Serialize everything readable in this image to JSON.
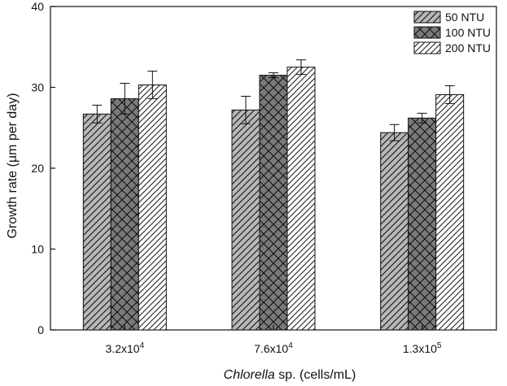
{
  "chart_data": {
    "type": "bar",
    "categories": [
      {
        "base": "3.2x10",
        "exp": "4"
      },
      {
        "base": "7.6x10",
        "exp": "4"
      },
      {
        "base": "1.3x10",
        "exp": "5"
      }
    ],
    "series": [
      {
        "name": "50 NTU",
        "values": [
          26.7,
          27.2,
          24.4
        ],
        "errors": [
          1.1,
          1.7,
          1.0
        ],
        "fill": "#b8b8b8",
        "pattern": "diagonal-back"
      },
      {
        "name": "100 NTU",
        "values": [
          28.6,
          31.5,
          26.2
        ],
        "errors": [
          1.9,
          0.3,
          0.6
        ],
        "fill": "#7a7a7a",
        "pattern": "crosshatch"
      },
      {
        "name": "200 NTU",
        "values": [
          30.3,
          32.5,
          29.1
        ],
        "errors": [
          1.7,
          0.9,
          1.1
        ],
        "fill": "#ffffff",
        "pattern": "diagonal-fwd"
      }
    ],
    "xlabel": {
      "italic": "Chlorella",
      "rest": " sp. (cells/mL)"
    },
    "ylabel": "Growth rate (µm per day)",
    "ylim": [
      0,
      40
    ],
    "yticks": [
      0,
      10,
      20,
      30,
      40
    ],
    "legend_position": "top-right",
    "grid": false
  }
}
